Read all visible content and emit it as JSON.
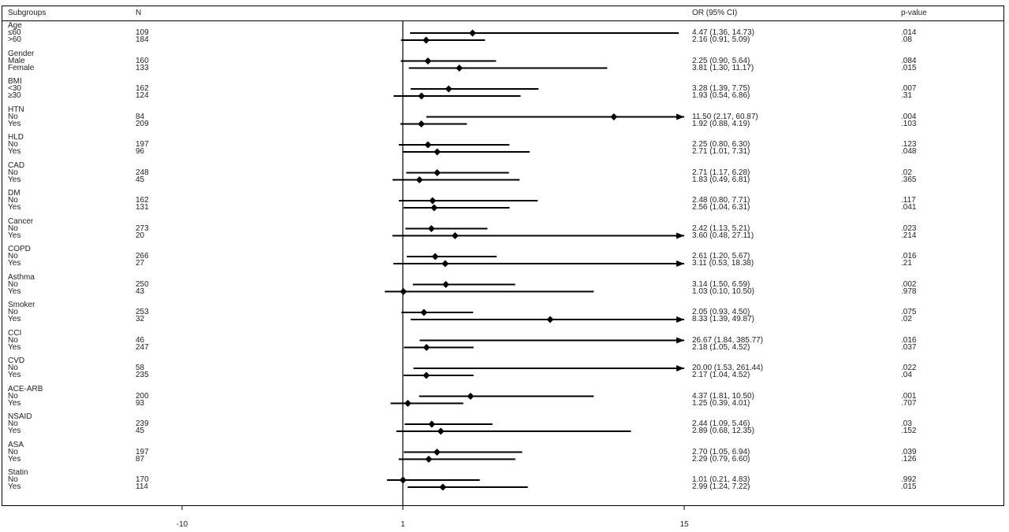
{
  "chart_data": {
    "type": "forest",
    "title": "",
    "columns": {
      "subgroups": "Subgroups",
      "n": "N",
      "or_ci": "OR (95% CI)",
      "p": "p-value"
    },
    "xticks": [
      "-10",
      "1",
      "15"
    ],
    "xlim": [
      -10,
      15
    ],
    "reference_line": 1,
    "arrow_clip": 15,
    "groups": [
      {
        "name": "Age",
        "rows": [
          {
            "label": "≤60",
            "n": "109",
            "or": 4.47,
            "lo": 1.36,
            "hi": 14.73,
            "text": "4.47 (1.36, 14.73)",
            "p": ".014"
          },
          {
            "label": ">60",
            "n": "184",
            "or": 2.16,
            "lo": 0.91,
            "hi": 5.09,
            "text": "2.16 (0.91, 5.09)",
            "p": ".08"
          }
        ]
      },
      {
        "name": "Gender",
        "rows": [
          {
            "label": "Male",
            "n": "160",
            "or": 2.25,
            "lo": 0.9,
            "hi": 5.64,
            "text": "2.25 (0.90, 5.64)",
            "p": ".084"
          },
          {
            "label": "Female",
            "n": "133",
            "or": 3.81,
            "lo": 1.3,
            "hi": 11.17,
            "text": "3.81 (1.30, 11.17)",
            "p": ".015"
          }
        ]
      },
      {
        "name": "BMI",
        "rows": [
          {
            "label": "<30",
            "n": "162",
            "or": 3.28,
            "lo": 1.39,
            "hi": 7.75,
            "text": "3.28 (1.39, 7.75)",
            "p": ".007"
          },
          {
            "label": "≥30",
            "n": "124",
            "or": 1.93,
            "lo": 0.54,
            "hi": 6.86,
            "text": "1.93 (0.54, 6.86)",
            "p": ".31"
          }
        ]
      },
      {
        "name": "HTN",
        "rows": [
          {
            "label": "No",
            "n": "84",
            "or": 11.5,
            "lo": 2.17,
            "hi": 60.87,
            "text": "11.50 (2.17, 60.87)",
            "p": ".004"
          },
          {
            "label": "Yes",
            "n": "209",
            "or": 1.92,
            "lo": 0.88,
            "hi": 4.19,
            "text": "1.92 (0.88, 4.19)",
            "p": ".103"
          }
        ]
      },
      {
        "name": "HLD",
        "rows": [
          {
            "label": "No",
            "n": "197",
            "or": 2.25,
            "lo": 0.8,
            "hi": 6.3,
            "text": "2.25 (0.80, 6.30)",
            "p": ".123"
          },
          {
            "label": "Yes",
            "n": "96",
            "or": 2.71,
            "lo": 1.01,
            "hi": 7.31,
            "text": "2.71 (1.01, 7.31)",
            "p": ".048"
          }
        ]
      },
      {
        "name": "CAD",
        "rows": [
          {
            "label": "No",
            "n": "248",
            "or": 2.71,
            "lo": 1.17,
            "hi": 6.28,
            "text": "2.71 (1.17, 6.28)",
            "p": ".02"
          },
          {
            "label": "Yes",
            "n": "45",
            "or": 1.83,
            "lo": 0.49,
            "hi": 6.81,
            "text": "1.83 (0.49, 6.81)",
            "p": ".365"
          }
        ]
      },
      {
        "name": "DM",
        "rows": [
          {
            "label": "No",
            "n": "162",
            "or": 2.48,
            "lo": 0.8,
            "hi": 7.71,
            "text": "2.48 (0.80, 7.71)",
            "p": ".117"
          },
          {
            "label": "Yes",
            "n": "131",
            "or": 2.56,
            "lo": 1.04,
            "hi": 6.31,
            "text": "2.56 (1.04, 6.31)",
            "p": ".041"
          }
        ]
      },
      {
        "name": "Cancer",
        "rows": [
          {
            "label": "No",
            "n": "273",
            "or": 2.42,
            "lo": 1.13,
            "hi": 5.21,
            "text": "2.42 (1.13, 5.21)",
            "p": ".023"
          },
          {
            "label": "Yes",
            "n": "20",
            "or": 3.6,
            "lo": 0.48,
            "hi": 27.11,
            "text": "3.60 (0.48, 27.11)",
            "p": ".214"
          }
        ]
      },
      {
        "name": "COPD",
        "rows": [
          {
            "label": "No",
            "n": "266",
            "or": 2.61,
            "lo": 1.2,
            "hi": 5.67,
            "text": "2.61 (1.20, 5.67)",
            "p": ".016"
          },
          {
            "label": "Yes",
            "n": "27",
            "or": 3.11,
            "lo": 0.53,
            "hi": 18.38,
            "text": "3.11 (0.53, 18.38)",
            "p": ".21"
          }
        ]
      },
      {
        "name": "Asthma",
        "rows": [
          {
            "label": "No",
            "n": "250",
            "or": 3.14,
            "lo": 1.5,
            "hi": 6.59,
            "text": "3.14 (1.50, 6.59)",
            "p": ".002"
          },
          {
            "label": "Yes",
            "n": "43",
            "or": 1.03,
            "lo": 0.1,
            "hi": 10.5,
            "text": "1.03 (0.10, 10.50)",
            "p": ".978"
          }
        ]
      },
      {
        "name": "Smoker",
        "rows": [
          {
            "label": "No",
            "n": "253",
            "or": 2.05,
            "lo": 0.93,
            "hi": 4.5,
            "text": "2.05 (0.93, 4.50)",
            "p": ".075"
          },
          {
            "label": "Yes",
            "n": "32",
            "or": 8.33,
            "lo": 1.39,
            "hi": 49.87,
            "text": "8.33 (1.39, 49.87)",
            "p": ".02"
          }
        ]
      },
      {
        "name": "CCI",
        "rows": [
          {
            "label": "No",
            "n": "46",
            "or": 26.67,
            "lo": 1.84,
            "hi": 385.77,
            "text": "26.67 (1.84, 385.77)",
            "p": ".016"
          },
          {
            "label": "Yes",
            "n": "247",
            "or": 2.18,
            "lo": 1.05,
            "hi": 4.52,
            "text": "2.18 (1.05, 4.52)",
            "p": ".037"
          }
        ]
      },
      {
        "name": "CVD",
        "rows": [
          {
            "label": "No",
            "n": "58",
            "or": 20.0,
            "lo": 1.53,
            "hi": 261.44,
            "text": "20.00 (1.53, 261.44)",
            "p": ".022"
          },
          {
            "label": "Yes",
            "n": "235",
            "or": 2.17,
            "lo": 1.04,
            "hi": 4.52,
            "text": "2.17 (1.04, 4.52)",
            "p": ".04"
          }
        ]
      },
      {
        "name": "ACE-ARB",
        "rows": [
          {
            "label": "No",
            "n": "200",
            "or": 4.37,
            "lo": 1.81,
            "hi": 10.5,
            "text": "4.37 (1.81, 10.50)",
            "p": ".001"
          },
          {
            "label": "Yes",
            "n": "93",
            "or": 1.25,
            "lo": 0.39,
            "hi": 4.01,
            "text": "1.25 (0.39, 4.01)",
            "p": ".707"
          }
        ]
      },
      {
        "name": "NSAID",
        "rows": [
          {
            "label": "No",
            "n": "239",
            "or": 2.44,
            "lo": 1.09,
            "hi": 5.46,
            "text": "2.44 (1.09, 5.46)",
            "p": ".03"
          },
          {
            "label": "Yes",
            "n": "45",
            "or": 2.89,
            "lo": 0.68,
            "hi": 12.35,
            "text": "2.89 (0.68, 12.35)",
            "p": ".152"
          }
        ]
      },
      {
        "name": "ASA",
        "rows": [
          {
            "label": "No",
            "n": "197",
            "or": 2.7,
            "lo": 1.05,
            "hi": 6.94,
            "text": "2.70 (1.05, 6.94)",
            "p": ".039"
          },
          {
            "label": "Yes",
            "n": "87",
            "or": 2.29,
            "lo": 0.79,
            "hi": 6.6,
            "text": "2.29 (0.79, 6.60)",
            "p": ".126"
          }
        ]
      },
      {
        "name": "Statin",
        "rows": [
          {
            "label": "No",
            "n": "170",
            "or": 1.01,
            "lo": 0.21,
            "hi": 4.83,
            "text": "1.01 (0.21, 4.83)",
            "p": ".992"
          },
          {
            "label": "Yes",
            "n": "114",
            "or": 2.99,
            "lo": 1.24,
            "hi": 7.22,
            "text": "2.99 (1.24, 7.22)",
            "p": ".015"
          }
        ]
      }
    ]
  }
}
